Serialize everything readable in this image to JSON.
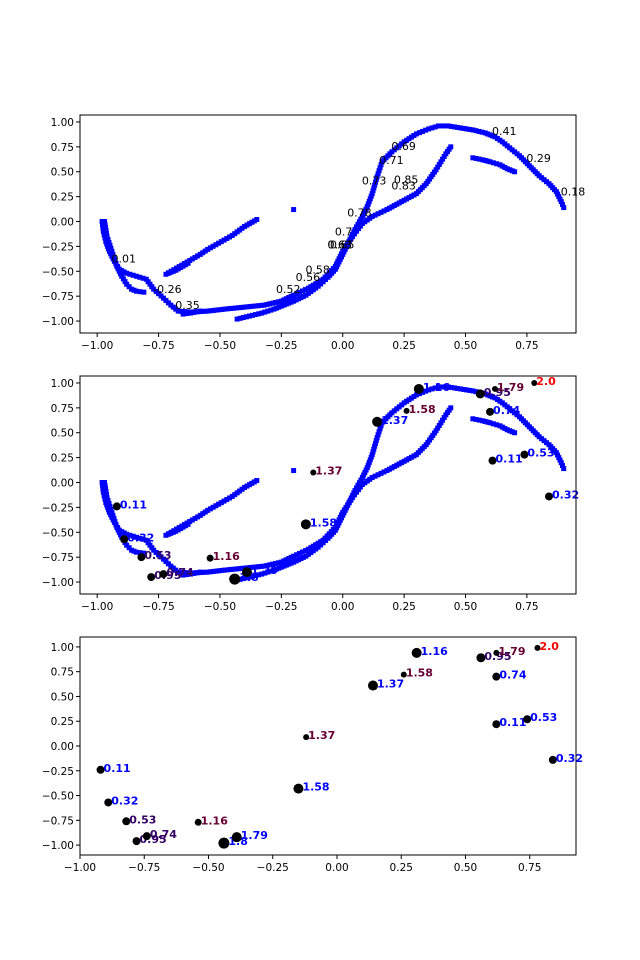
{
  "figure": {
    "background": "#ffffff"
  },
  "colors": {
    "scatter": "#0000ff",
    "marker": "#000000",
    "label_hi": "#ff0000",
    "label_lo": "#0000ff",
    "label_mid": "#660033",
    "text": "#000000"
  },
  "chart_data": [
    {
      "type": "scatter",
      "title": "",
      "xlabel": "",
      "ylabel": "",
      "xlim": [
        -1.07,
        0.95
      ],
      "ylim": [
        -1.12,
        1.07
      ],
      "xticks": [
        -1.0,
        -0.75,
        -0.5,
        -0.25,
        0.0,
        0.25,
        0.5,
        0.75
      ],
      "xtick_labels": [
        "−1.00",
        "−0.75",
        "−0.50",
        "−0.25",
        "0.00",
        "0.25",
        "0.50",
        "0.75"
      ],
      "yticks": [
        -1.0,
        -0.75,
        -0.5,
        -0.25,
        0.0,
        0.25,
        0.5,
        0.75,
        1.0
      ],
      "ytick_labels": [
        "−1.00",
        "−0.75",
        "−0.50",
        "−0.25",
        "0.00",
        "0.25",
        "0.50",
        "0.75",
        "1.00"
      ],
      "grid": false,
      "series": [
        {
          "marker": "square",
          "color": "#0000ff",
          "curves": [
            [
              [
                -0.98,
                0.0
              ],
              [
                -0.975,
                -0.1
              ],
              [
                -0.965,
                -0.2
              ],
              [
                -0.95,
                -0.3
              ],
              [
                -0.93,
                -0.4
              ],
              [
                -0.91,
                -0.48
              ],
              [
                -0.88,
                -0.52
              ],
              [
                -0.84,
                -0.55
              ],
              [
                -0.8,
                -0.58
              ],
              [
                -0.77,
                -0.68
              ],
              [
                -0.73,
                -0.77
              ],
              [
                -0.7,
                -0.84
              ],
              [
                -0.67,
                -0.9
              ],
              [
                -0.62,
                -0.91
              ],
              [
                -0.55,
                -0.9
              ],
              [
                -0.48,
                -0.88
              ],
              [
                -0.4,
                -0.86
              ],
              [
                -0.32,
                -0.84
              ],
              [
                -0.25,
                -0.8
              ],
              [
                -0.2,
                -0.74
              ],
              [
                -0.14,
                -0.67
              ],
              [
                -0.08,
                -0.58
              ],
              [
                -0.03,
                -0.45
              ],
              [
                0.0,
                -0.3
              ],
              [
                0.04,
                -0.15
              ],
              [
                0.08,
                -0.02
              ],
              [
                0.12,
                0.05
              ],
              [
                0.18,
                0.12
              ],
              [
                0.24,
                0.2
              ],
              [
                0.3,
                0.28
              ],
              [
                0.34,
                0.38
              ],
              [
                0.38,
                0.52
              ],
              [
                0.42,
                0.68
              ],
              [
                0.44,
                0.75
              ]
            ],
            [
              [
                -0.97,
                0.0
              ],
              [
                -0.96,
                -0.15
              ],
              [
                -0.94,
                -0.3
              ],
              [
                -0.92,
                -0.45
              ],
              [
                -0.9,
                -0.55
              ],
              [
                -0.88,
                -0.63
              ],
              [
                -0.86,
                -0.68
              ],
              [
                -0.84,
                -0.7
              ],
              [
                -0.81,
                -0.71
              ]
            ],
            [
              [
                -0.65,
                -0.93
              ],
              [
                -0.62,
                -0.92
              ],
              [
                -0.58,
                -0.9
              ]
            ],
            [
              [
                -0.43,
                -0.98
              ],
              [
                -0.38,
                -0.95
              ],
              [
                -0.33,
                -0.92
              ],
              [
                -0.28,
                -0.88
              ],
              [
                -0.24,
                -0.84
              ],
              [
                -0.2,
                -0.8
              ],
              [
                -0.15,
                -0.74
              ],
              [
                -0.1,
                -0.65
              ],
              [
                -0.06,
                -0.56
              ],
              [
                -0.03,
                -0.48
              ],
              [
                -0.01,
                -0.38
              ],
              [
                0.01,
                -0.28
              ],
              [
                0.03,
                -0.18
              ],
              [
                0.05,
                -0.08
              ],
              [
                0.08,
                0.05
              ],
              [
                0.1,
                0.15
              ],
              [
                0.12,
                0.28
              ],
              [
                0.14,
                0.45
              ],
              [
                0.16,
                0.6
              ],
              [
                0.2,
                0.7
              ],
              [
                0.25,
                0.8
              ],
              [
                0.3,
                0.88
              ],
              [
                0.35,
                0.93
              ],
              [
                0.39,
                0.96
              ],
              [
                0.43,
                0.96
              ],
              [
                0.48,
                0.94
              ],
              [
                0.53,
                0.92
              ],
              [
                0.58,
                0.89
              ],
              [
                0.62,
                0.85
              ],
              [
                0.65,
                0.8
              ],
              [
                0.68,
                0.74
              ],
              [
                0.72,
                0.66
              ],
              [
                0.76,
                0.56
              ],
              [
                0.8,
                0.46
              ],
              [
                0.84,
                0.38
              ],
              [
                0.87,
                0.3
              ],
              [
                0.89,
                0.2
              ],
              [
                0.9,
                0.14
              ]
            ],
            [
              [
                -0.63,
                -0.42
              ],
              [
                -0.68,
                -0.49
              ],
              [
                -0.72,
                -0.53
              ],
              [
                -0.58,
                -0.33
              ],
              [
                -0.55,
                -0.28
              ],
              [
                -0.45,
                -0.14
              ],
              [
                -0.4,
                -0.05
              ],
              [
                -0.35,
                0.02
              ]
            ],
            [
              [
                -0.2,
                0.12
              ]
            ],
            [
              [
                0.53,
                0.64
              ],
              [
                0.57,
                0.62
              ],
              [
                0.6,
                0.6
              ],
              [
                0.64,
                0.57
              ],
              [
                0.67,
                0.53
              ],
              [
                0.7,
                0.5
              ]
            ]
          ]
        }
      ],
      "annotations": [
        {
          "x": -0.95,
          "y": -0.43,
          "text": "0.01"
        },
        {
          "x": -0.78,
          "y": -0.74,
          "text": "-0.26"
        },
        {
          "x": -0.69,
          "y": -0.9,
          "text": "0.35"
        },
        {
          "x": -0.28,
          "y": -0.74,
          "text": "0.52"
        },
        {
          "x": -0.2,
          "y": -0.62,
          "text": "0.56"
        },
        {
          "x": -0.16,
          "y": -0.54,
          "text": "0.58"
        },
        {
          "x": -0.07,
          "y": -0.29,
          "text": "0.63"
        },
        {
          "x": -0.07,
          "y": -0.29,
          "text": "0.63"
        },
        {
          "x": -0.06,
          "y": -0.29,
          "text": "0.65"
        },
        {
          "x": -0.04,
          "y": -0.16,
          "text": "0.7"
        },
        {
          "x": 0.01,
          "y": 0.03,
          "text": "0.78"
        },
        {
          "x": 0.07,
          "y": 0.35,
          "text": "0.73"
        },
        {
          "x": 0.19,
          "y": 0.3,
          "text": "0.83"
        },
        {
          "x": 0.2,
          "y": 0.36,
          "text": "0.85"
        },
        {
          "x": 0.14,
          "y": 0.56,
          "text": "0.71"
        },
        {
          "x": 0.19,
          "y": 0.7,
          "text": "0.69"
        },
        {
          "x": 0.6,
          "y": 0.85,
          "text": "0.41"
        },
        {
          "x": 0.74,
          "y": 0.58,
          "text": "0.29"
        },
        {
          "x": 0.88,
          "y": 0.24,
          "text": "0.18"
        }
      ]
    },
    {
      "type": "scatter",
      "title": "",
      "xlabel": "",
      "ylabel": "",
      "xlim": [
        -1.07,
        0.95
      ],
      "ylim": [
        -1.12,
        1.07
      ],
      "xticks": [
        -1.0,
        -0.75,
        -0.5,
        -0.25,
        0.0,
        0.25,
        0.5,
        0.75
      ],
      "xtick_labels": [
        "−1.00",
        "−0.75",
        "−0.50",
        "−0.25",
        "0.00",
        "0.25",
        "0.50",
        "0.75"
      ],
      "yticks": [
        -1.0,
        -0.75,
        -0.5,
        -0.25,
        0.0,
        0.25,
        0.5,
        0.75,
        1.0
      ],
      "ytick_labels": [
        "−1.00",
        "−0.75",
        "−0.50",
        "−0.25",
        "0.00",
        "0.25",
        "0.50",
        "0.75",
        "1.00"
      ],
      "grid": false,
      "background_curve_from_chart": 0,
      "points": [
        {
          "x": -0.92,
          "y": -0.24,
          "size": 4,
          "label": "0.11",
          "color": "#0000ff"
        },
        {
          "x": -0.89,
          "y": -0.57,
          "size": 4,
          "label": "0.32",
          "color": "#0000ff"
        },
        {
          "x": -0.82,
          "y": -0.75,
          "size": 4,
          "label": "0.53",
          "color": "#330066"
        },
        {
          "x": -0.78,
          "y": -0.95,
          "size": 4,
          "label": "0.95",
          "color": "#330066"
        },
        {
          "x": -0.73,
          "y": -0.92,
          "size": 4,
          "label": "0.74",
          "color": "#330066"
        },
        {
          "x": -0.54,
          "y": -0.76,
          "size": 3.5,
          "label": "1.16",
          "color": "#660033"
        },
        {
          "x": -0.44,
          "y": -0.97,
          "size": 5.5,
          "label": "1.8",
          "color": "#0000ff"
        },
        {
          "x": -0.39,
          "y": -0.9,
          "size": 5,
          "label": "1.79",
          "color": "#0000ff"
        },
        {
          "x": -0.15,
          "y": -0.42,
          "size": 5,
          "label": "1.58",
          "color": "#0000ff"
        },
        {
          "x": -0.12,
          "y": 0.1,
          "size": 3,
          "label": "1.37",
          "color": "#660033"
        },
        {
          "x": 0.14,
          "y": 0.61,
          "size": 5,
          "label": "1.37",
          "color": "#0000ff"
        },
        {
          "x": 0.26,
          "y": 0.72,
          "size": 3,
          "label": "1.58",
          "color": "#660033"
        },
        {
          "x": 0.31,
          "y": 0.94,
          "size": 5,
          "label": "1.16",
          "color": "#0000ff"
        },
        {
          "x": 0.56,
          "y": 0.89,
          "size": 4.5,
          "label": "0.95",
          "color": "#330066"
        },
        {
          "x": 0.6,
          "y": 0.71,
          "size": 4,
          "label": "0.74",
          "color": "#0000ff"
        },
        {
          "x": 0.61,
          "y": 0.22,
          "size": 4,
          "label": "0.11",
          "color": "#0000ff"
        },
        {
          "x": 0.74,
          "y": 0.28,
          "size": 4,
          "label": "0.53",
          "color": "#0000ff"
        },
        {
          "x": 0.62,
          "y": 0.94,
          "size": 3,
          "label": "1.79",
          "color": "#660033"
        },
        {
          "x": 0.78,
          "y": 1.0,
          "size": 3,
          "label": "2.0",
          "color": "#ff0000"
        },
        {
          "x": 0.84,
          "y": -0.14,
          "size": 4,
          "label": "0.32",
          "color": "#0000ff"
        }
      ]
    },
    {
      "type": "scatter",
      "title": "",
      "xlabel": "",
      "ylabel": "",
      "xlim": [
        -1.0,
        0.93
      ],
      "ylim": [
        -1.1,
        1.1
      ],
      "xticks": [
        -1.0,
        -0.75,
        -0.5,
        -0.25,
        0.0,
        0.25,
        0.5,
        0.75
      ],
      "xtick_labels": [
        "−1.00",
        "−0.75",
        "−0.50",
        "−0.25",
        "0.00",
        "0.25",
        "0.50",
        "0.75"
      ],
      "yticks": [
        -1.0,
        -0.75,
        -0.5,
        -0.25,
        0.0,
        0.25,
        0.5,
        0.75,
        1.0
      ],
      "ytick_labels": [
        "−1.00",
        "−0.75",
        "−0.50",
        "−0.25",
        "0.00",
        "0.25",
        "0.50",
        "0.75",
        "1.00"
      ],
      "grid": false,
      "points": [
        {
          "x": -0.92,
          "y": -0.24,
          "size": 4,
          "label": "0.11",
          "color": "#0000ff"
        },
        {
          "x": -0.89,
          "y": -0.57,
          "size": 4,
          "label": "0.32",
          "color": "#0000ff"
        },
        {
          "x": -0.82,
          "y": -0.76,
          "size": 4,
          "label": "0.53",
          "color": "#330066"
        },
        {
          "x": -0.78,
          "y": -0.96,
          "size": 4,
          "label": "0.95",
          "color": "#330066"
        },
        {
          "x": -0.74,
          "y": -0.91,
          "size": 4,
          "label": "0.74",
          "color": "#330066"
        },
        {
          "x": -0.54,
          "y": -0.77,
          "size": 3.5,
          "label": "1.16",
          "color": "#660033"
        },
        {
          "x": -0.44,
          "y": -0.98,
          "size": 5.5,
          "label": "1.8",
          "color": "#0000ff"
        },
        {
          "x": -0.39,
          "y": -0.92,
          "size": 5,
          "label": "1.79",
          "color": "#0000ff"
        },
        {
          "x": -0.15,
          "y": -0.43,
          "size": 5,
          "label": "1.58",
          "color": "#0000ff"
        },
        {
          "x": -0.12,
          "y": 0.09,
          "size": 3,
          "label": "1.37",
          "color": "#660033"
        },
        {
          "x": 0.14,
          "y": 0.61,
          "size": 5,
          "label": "1.37",
          "color": "#0000ff"
        },
        {
          "x": 0.26,
          "y": 0.72,
          "size": 3,
          "label": "1.58",
          "color": "#660033"
        },
        {
          "x": 0.31,
          "y": 0.94,
          "size": 5,
          "label": "1.16",
          "color": "#0000ff"
        },
        {
          "x": 0.56,
          "y": 0.89,
          "size": 4.5,
          "label": "0.95",
          "color": "#330066"
        },
        {
          "x": 0.62,
          "y": 0.7,
          "size": 4,
          "label": "0.74",
          "color": "#0000ff"
        },
        {
          "x": 0.62,
          "y": 0.22,
          "size": 4,
          "label": "0.11",
          "color": "#0000ff"
        },
        {
          "x": 0.74,
          "y": 0.27,
          "size": 4,
          "label": "0.53",
          "color": "#0000ff"
        },
        {
          "x": 0.62,
          "y": 0.94,
          "size": 3,
          "label": "1.79",
          "color": "#660033"
        },
        {
          "x": 0.78,
          "y": 0.99,
          "size": 3,
          "label": "2.0",
          "color": "#ff0000"
        },
        {
          "x": 0.84,
          "y": -0.14,
          "size": 4,
          "label": "0.32",
          "color": "#0000ff"
        }
      ]
    }
  ]
}
